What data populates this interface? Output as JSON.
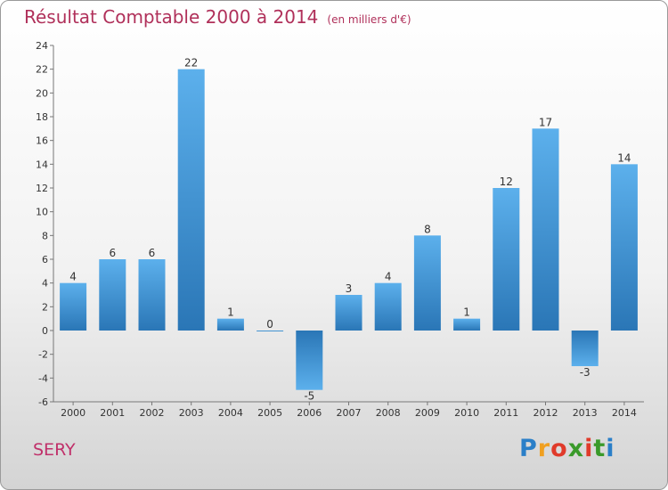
{
  "chart_data": {
    "type": "bar",
    "title": "Résultat Comptable 2000 à 2014",
    "subtitle": "(en milliers d'€)",
    "categories": [
      "2000",
      "2001",
      "2002",
      "2003",
      "2004",
      "2005",
      "2006",
      "2007",
      "2008",
      "2009",
      "2010",
      "2011",
      "2012",
      "2013",
      "2014"
    ],
    "values": [
      4,
      6,
      6,
      22,
      1,
      0,
      -5,
      3,
      4,
      8,
      1,
      12,
      17,
      -3,
      14
    ],
    "ylim": [
      -6,
      24
    ],
    "yticks": [
      -6,
      -4,
      -2,
      0,
      2,
      4,
      6,
      8,
      10,
      12,
      14,
      16,
      18,
      20,
      22,
      24
    ],
    "xlabel": "",
    "ylabel": "",
    "grid": false,
    "legend": "none",
    "colors": {
      "bar_top": "#5aaeea",
      "bar_bottom": "#2a78b8",
      "axis": "#777777",
      "title": "#b0305a"
    }
  },
  "footer": {
    "commune": "SERY",
    "logo_letters": [
      "P",
      "r",
      "o",
      "x",
      "i",
      "t",
      "i"
    ]
  }
}
